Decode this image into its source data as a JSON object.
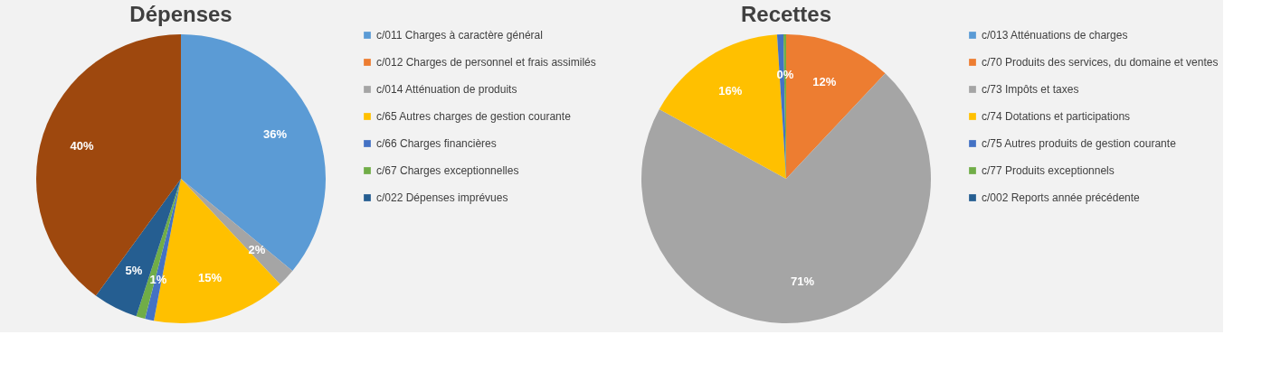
{
  "chart_data": [
    {
      "type": "pie",
      "title": "Dépenses",
      "legend": "right",
      "categories": [
        "c/011 Charges à caractère général",
        "c/012 Charges de personnel et frais assimilés",
        "c/014 Atténuation de produits",
        "c/65 Autres charges de gestion courante",
        "c/66 Charges financières",
        "c/67 Charges exceptionnelles",
        "c/022 Dépenses imprévues",
        null
      ],
      "values": [
        36,
        0,
        2,
        15,
        1,
        1,
        5,
        40
      ],
      "colors": [
        "#5b9bd5",
        "#ed7d31",
        "#a5a5a5",
        "#ffc000",
        "#4472c4",
        "#70ad47",
        "#255e91",
        "#9e480e"
      ],
      "value_labels": [
        "36%",
        null,
        "2%",
        "15%",
        "1%",
        null,
        "5%",
        "40%"
      ]
    },
    {
      "type": "pie",
      "title": "Recettes",
      "legend": "right",
      "categories": [
        "c/013 Atténuations de charges",
        "c/70 Produits des services, du domaine et ventes",
        "c/73 Impôts et taxes",
        "c/74 Dotations et participations",
        "c/75 Autres produits de gestion courante",
        "c/77 Produits exceptionnels",
        "c/002 Reports année précédente"
      ],
      "values": [
        0,
        12,
        71,
        16,
        0.7,
        0.3,
        0
      ],
      "colors": [
        "#5b9bd5",
        "#ed7d31",
        "#a5a5a5",
        "#ffc000",
        "#4472c4",
        "#70ad47",
        "#255e91"
      ],
      "value_labels": [
        null,
        "12%",
        "71%",
        "16%",
        null,
        "0%",
        null
      ]
    }
  ]
}
